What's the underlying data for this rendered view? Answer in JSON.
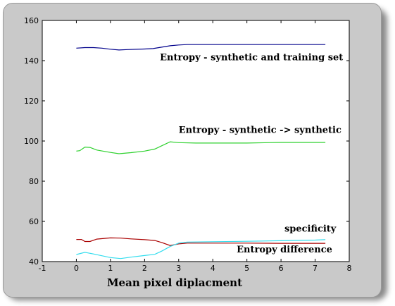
{
  "chart_data": {
    "type": "line",
    "xlabel": "Mean pixel diplacment",
    "ylabel": "",
    "xlim": [
      -1,
      8
    ],
    "ylim": [
      40,
      160
    ],
    "xticks": [
      -1,
      0,
      1,
      2,
      3,
      4,
      5,
      6,
      7,
      8
    ],
    "yticks": [
      40,
      60,
      80,
      100,
      120,
      140,
      160
    ],
    "grid": false,
    "series": [
      {
        "color": "#00008b",
        "x": [
          0,
          0.25,
          0.5,
          0.75,
          1.0,
          1.25,
          1.5,
          2.0,
          2.25,
          2.5,
          2.75,
          3.0,
          3.25,
          3.5,
          4,
          5,
          6,
          7,
          7.3
        ],
        "y": [
          146.2,
          146.5,
          146.5,
          146.2,
          145.7,
          145.3,
          145.5,
          145.8,
          146.0,
          146.7,
          147.4,
          147.8,
          148.0,
          148.0,
          148.0,
          148.0,
          148.0,
          148.0,
          148.0
        ]
      },
      {
        "color": "#2ed12e",
        "x": [
          0,
          0.1,
          0.25,
          0.4,
          0.6,
          1.0,
          1.25,
          1.6,
          2.0,
          2.3,
          2.5,
          2.75,
          3.0,
          3.5,
          5,
          6,
          7,
          7.3
        ],
        "y": [
          95.0,
          95.2,
          97.0,
          96.8,
          95.5,
          94.3,
          93.7,
          94.2,
          95.0,
          96.0,
          97.6,
          99.6,
          99.2,
          99.0,
          99.0,
          99.3,
          99.3,
          99.3
        ]
      },
      {
        "color": "#aa0000",
        "x": [
          0,
          0.15,
          0.25,
          0.4,
          0.6,
          1.0,
          1.3,
          1.6,
          2.0,
          2.3,
          2.5,
          2.75,
          3.0,
          3.25,
          4,
          5,
          6,
          7,
          7.3
        ],
        "y": [
          51.0,
          51.0,
          50.0,
          50.0,
          51.2,
          51.8,
          51.7,
          51.3,
          50.9,
          50.5,
          49.5,
          48.0,
          48.8,
          49.2,
          49.2,
          49.2,
          49.1,
          49.1,
          49.1
        ]
      },
      {
        "color": "#33ddee",
        "x": [
          0,
          0.25,
          0.5,
          1.0,
          1.3,
          1.6,
          2.0,
          2.3,
          2.5,
          2.75,
          3.0,
          3.25,
          4,
          5,
          6,
          7,
          7.3
        ],
        "y": [
          43.5,
          44.6,
          43.8,
          42.0,
          41.5,
          42.2,
          43.0,
          43.6,
          45.2,
          47.5,
          49.2,
          49.7,
          49.9,
          50.1,
          50.4,
          50.7,
          50.9
        ]
      }
    ],
    "annotations": [
      {
        "text": "Entropy - synthetic and training set",
        "x": 2.45,
        "y": 140.1
      },
      {
        "text": "Entropy - synthetic -> synthetic",
        "x": 3.0,
        "y": 104.0
      },
      {
        "text": "specificity",
        "x": 6.1,
        "y": 55.0
      },
      {
        "text": "Entropy difference",
        "x": 4.7,
        "y": 44.5
      }
    ]
  }
}
